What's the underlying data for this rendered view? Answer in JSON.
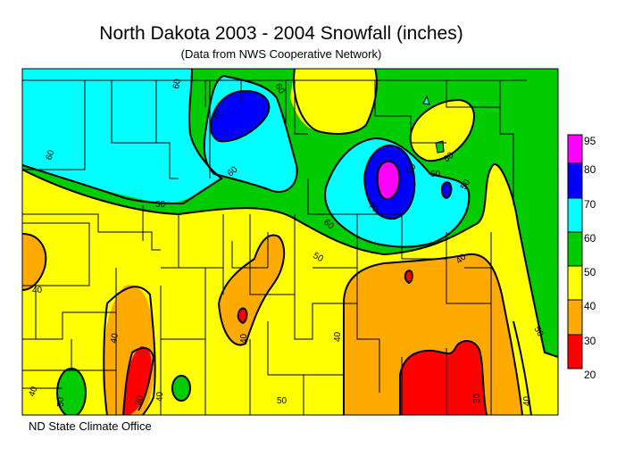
{
  "title": "North Dakota 2003 - 2004 Snowfall (inches)",
  "subtitle": "(Data from NWS Cooperative Network)",
  "credit": "ND State Climate Office",
  "legend": {
    "labels": [
      "95",
      "80",
      "70",
      "60",
      "50",
      "40",
      "30",
      "20"
    ],
    "bands": [
      {
        "range": "80-95",
        "color": "#ff00ff"
      },
      {
        "range": "70-80",
        "color": "#0000ff"
      },
      {
        "range": "60-70",
        "color": "#00ffff"
      },
      {
        "range": "50-60",
        "color": "#00cc00"
      },
      {
        "range": "40-50",
        "color": "#ffff00"
      },
      {
        "range": "30-40",
        "color": "#ffaa00"
      },
      {
        "range": "20-30",
        "color": "#ff0000"
      }
    ]
  },
  "contour_labels": [
    "60",
    "70",
    "60",
    "60",
    "60",
    "50",
    "50",
    "60",
    "70",
    "60",
    "60",
    "50",
    "50",
    "40",
    "40",
    "40",
    "40",
    "50",
    "50",
    "40",
    "40",
    "40",
    "30",
    "30",
    "40",
    "50"
  ]
}
